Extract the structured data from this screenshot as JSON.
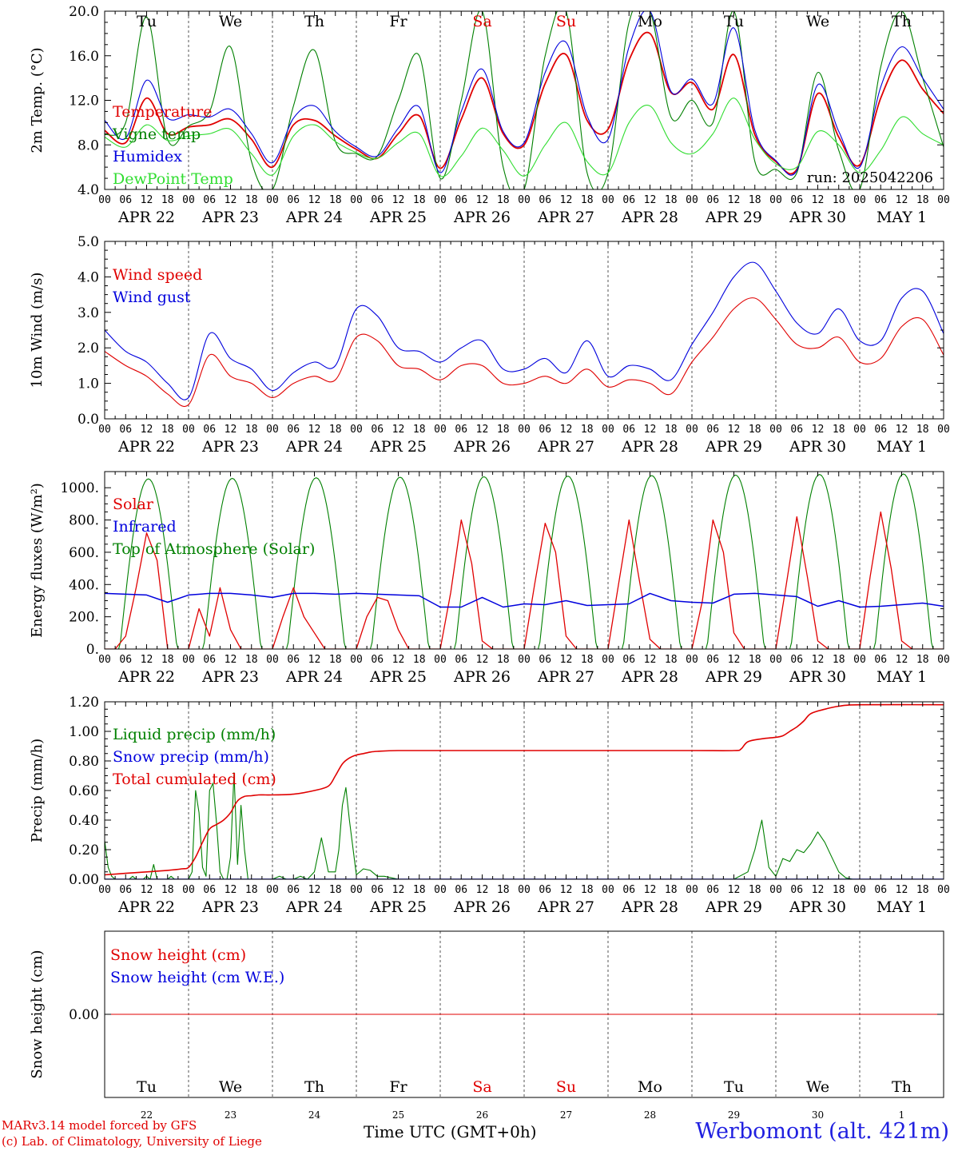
{
  "colors": {
    "red": "#e00000",
    "green": "#008000",
    "blue": "#0000dd",
    "lightgreen": "#30dd30",
    "weekend": "#e00000",
    "footer_blue": "#2020e0"
  },
  "time_axis": {
    "hour_labels": [
      "00",
      "06",
      "12",
      "18"
    ],
    "date_labels": [
      "APR 22",
      "APR 23",
      "APR 24",
      "APR 25",
      "APR 26",
      "APR 27",
      "APR 28",
      "APR 29",
      "APR 30",
      "MAY  1"
    ],
    "final_hour_label": "00",
    "weekdays": [
      {
        "label": "Tu",
        "weekend": false
      },
      {
        "label": "We",
        "weekend": false
      },
      {
        "label": "Th",
        "weekend": false
      },
      {
        "label": "Fr",
        "weekend": false
      },
      {
        "label": "Sa",
        "weekend": true
      },
      {
        "label": "Su",
        "weekend": true
      },
      {
        "label": "Mo",
        "weekend": false
      },
      {
        "label": "Tu",
        "weekend": false
      },
      {
        "label": "We",
        "weekend": false
      },
      {
        "label": "Th",
        "weekend": false
      }
    ],
    "day_numbers": [
      "22",
      "23",
      "24",
      "25",
      "26",
      "27",
      "28",
      "29",
      "30",
      "1"
    ]
  },
  "chart_data": [
    {
      "type": "line",
      "ylabel": "2m Temp. (°C)",
      "ylim": [
        4.0,
        20.0
      ],
      "yticks": [
        "4.0",
        "8.0",
        "12.0",
        "16.0",
        "20.0"
      ],
      "annotation": "run: 2025042206",
      "legend": [
        {
          "label": "Temperature",
          "color": "#e00000"
        },
        {
          "label": "Vigne temp",
          "color": "#008000"
        },
        {
          "label": "Humidex",
          "color": "#0000dd"
        },
        {
          "label": "DewPoint Temp",
          "color": "#30dd30"
        }
      ],
      "x_hours": [
        0,
        6,
        12,
        18,
        24,
        30,
        36,
        42,
        48,
        54,
        60,
        66,
        72,
        78,
        84,
        90,
        96,
        102,
        108,
        114,
        120,
        126,
        132,
        138,
        144,
        150,
        156,
        162,
        168,
        174,
        180,
        186,
        192,
        198,
        204,
        210,
        216,
        222,
        228,
        234,
        240
      ],
      "series": [
        {
          "name": "Temperature",
          "color": "#e00000",
          "values": [
            9.3,
            8.2,
            12.2,
            9.0,
            9.6,
            9.8,
            10.3,
            8.5,
            6.0,
            9.8,
            10.2,
            8.8,
            7.6,
            6.8,
            9.0,
            10.6,
            5.9,
            10.3,
            14.0,
            9.0,
            8.0,
            13.5,
            16.1,
            10.2,
            9.4,
            15.6,
            18.0,
            12.7,
            13.6,
            11.2,
            16.1,
            8.9,
            6.5,
            5.8,
            12.6,
            8.7,
            6.2,
            12.2,
            15.6,
            13.0,
            10.8
          ]
        },
        {
          "name": "Vigne temp",
          "color": "#008000",
          "values": [
            8.9,
            10.0,
            19.5,
            8.5,
            9.7,
            11.0,
            16.8,
            6.5,
            4.0,
            11.5,
            16.5,
            8.3,
            7.2,
            7.0,
            12.0,
            16.0,
            5.0,
            12.0,
            20.0,
            6.0,
            4.0,
            16.0,
            20.0,
            5.5,
            5.5,
            19.0,
            20.0,
            10.5,
            12.0,
            10.0,
            20.0,
            6.5,
            5.8,
            5.5,
            14.5,
            7.5,
            4.0,
            15.0,
            20.0,
            14.0,
            7.8
          ]
        },
        {
          "name": "Humidex",
          "color": "#0000dd",
          "values": [
            10.2,
            8.6,
            13.8,
            10.4,
            10.7,
            10.5,
            11.2,
            9.0,
            6.4,
            10.4,
            11.5,
            9.2,
            7.8,
            7.0,
            9.5,
            11.4,
            5.5,
            11.0,
            14.8,
            9.2,
            8.2,
            14.5,
            17.2,
            10.6,
            8.5,
            16.8,
            20.0,
            12.8,
            13.9,
            11.7,
            18.5,
            9.3,
            6.6,
            5.7,
            13.4,
            9.2,
            6.0,
            13.2,
            16.8,
            14.0,
            11.2
          ]
        },
        {
          "name": "DewPoint Temp",
          "color": "#30dd30",
          "values": [
            8.7,
            7.8,
            9.8,
            8.4,
            8.8,
            9.0,
            9.4,
            7.2,
            5.3,
            8.8,
            9.8,
            8.3,
            7.3,
            6.8,
            8.2,
            9.0,
            5.2,
            7.0,
            9.5,
            7.5,
            5.2,
            8.0,
            10.0,
            6.5,
            5.5,
            10.0,
            11.5,
            8.2,
            7.2,
            9.0,
            12.2,
            8.5,
            6.3,
            6.0,
            9.2,
            8.0,
            5.5,
            7.5,
            10.5,
            9.0,
            8.0
          ]
        }
      ]
    },
    {
      "type": "line",
      "ylabel": "10m Wind (m/s)",
      "ylim": [
        0.0,
        5.0
      ],
      "yticks": [
        "0.0",
        "1.0",
        "2.0",
        "3.0",
        "4.0",
        "5.0"
      ],
      "legend": [
        {
          "label": "Wind speed",
          "color": "#e00000"
        },
        {
          "label": "Wind gust",
          "color": "#0000dd"
        }
      ],
      "x_hours": [
        0,
        6,
        12,
        18,
        24,
        30,
        36,
        42,
        48,
        54,
        60,
        66,
        72,
        78,
        84,
        90,
        96,
        102,
        108,
        114,
        120,
        126,
        132,
        138,
        144,
        150,
        156,
        162,
        168,
        174,
        180,
        186,
        192,
        198,
        204,
        210,
        216,
        222,
        228,
        234,
        240
      ],
      "series": [
        {
          "name": "Wind speed",
          "color": "#e00000",
          "values": [
            1.9,
            1.5,
            1.2,
            0.7,
            0.4,
            1.8,
            1.2,
            1.0,
            0.6,
            1.0,
            1.2,
            1.1,
            2.3,
            2.2,
            1.5,
            1.4,
            1.1,
            1.5,
            1.5,
            1.0,
            1.0,
            1.2,
            1.0,
            1.4,
            0.9,
            1.1,
            1.0,
            0.7,
            1.6,
            2.3,
            3.1,
            3.4,
            2.8,
            2.1,
            2.0,
            2.3,
            1.6,
            1.7,
            2.6,
            2.8,
            1.8
          ]
        },
        {
          "name": "Wind gust",
          "color": "#0000dd",
          "values": [
            2.5,
            1.9,
            1.6,
            1.0,
            0.6,
            2.4,
            1.7,
            1.4,
            0.8,
            1.3,
            1.6,
            1.5,
            3.1,
            2.9,
            2.0,
            1.9,
            1.6,
            2.0,
            2.2,
            1.4,
            1.4,
            1.7,
            1.3,
            2.2,
            1.2,
            1.5,
            1.4,
            1.1,
            2.1,
            3.0,
            4.0,
            4.4,
            3.6,
            2.7,
            2.4,
            3.1,
            2.2,
            2.2,
            3.4,
            3.6,
            2.4
          ]
        }
      ]
    },
    {
      "type": "line",
      "ylabel": "Energy fluxes (W/m²)",
      "ylim": [
        0,
        1100
      ],
      "yticks": [
        "0.",
        "200.",
        "400.",
        "600.",
        "800.",
        "1000."
      ],
      "legend": [
        {
          "label": "Solar",
          "color": "#e00000"
        },
        {
          "label": "Infrared",
          "color": "#0000dd"
        },
        {
          "label": "Top of Atmosphere (Solar)",
          "color": "#008000"
        }
      ],
      "toa_peak": [
        1055,
        1058,
        1062,
        1065,
        1068,
        1072,
        1075,
        1078,
        1082,
        1085
      ],
      "solar_peak": [
        740,
        370,
        370,
        320,
        810,
        790,
        820,
        810,
        830,
        850
      ],
      "solar_hours": [
        0,
        3,
        6,
        9,
        12,
        15,
        18,
        21,
        24,
        27,
        30,
        33,
        36,
        39,
        42,
        45,
        48,
        51,
        54,
        57,
        60,
        63,
        66,
        69,
        72,
        75,
        78,
        81,
        84,
        87,
        90,
        93,
        96,
        99,
        102,
        105,
        108,
        111,
        114,
        117,
        120,
        123,
        126,
        129,
        132,
        135,
        138,
        141,
        144,
        147,
        150,
        153,
        156,
        159,
        162,
        165,
        168,
        171,
        174,
        177,
        180,
        183,
        186,
        189,
        192,
        195,
        198,
        201,
        204,
        207,
        210,
        213,
        216,
        219,
        222,
        225,
        228,
        231,
        234,
        237,
        240
      ],
      "solar_values": [
        0,
        0,
        80,
        380,
        720,
        550,
        0,
        0,
        0,
        250,
        80,
        380,
        120,
        0,
        0,
        0,
        0,
        200,
        380,
        200,
        100,
        0,
        0,
        0,
        0,
        200,
        320,
        300,
        120,
        0,
        0,
        0,
        0,
        350,
        800,
        530,
        50,
        0,
        0,
        0,
        0,
        400,
        780,
        600,
        80,
        0,
        0,
        0,
        0,
        400,
        800,
        420,
        60,
        0,
        0,
        0,
        0,
        300,
        800,
        600,
        100,
        0,
        0,
        0,
        0,
        400,
        820,
        450,
        50,
        0,
        0,
        0,
        0,
        450,
        850,
        500,
        50,
        0,
        0,
        0,
        0
      ],
      "infrared_hours": [
        0,
        6,
        12,
        18,
        24,
        30,
        36,
        42,
        48,
        54,
        60,
        66,
        72,
        78,
        84,
        90,
        96,
        102,
        108,
        114,
        120,
        126,
        132,
        138,
        144,
        150,
        156,
        162,
        168,
        174,
        180,
        186,
        192,
        198,
        204,
        210,
        216,
        222,
        228,
        234,
        240
      ],
      "infrared_values": [
        345,
        340,
        335,
        290,
        335,
        345,
        345,
        335,
        320,
        345,
        345,
        340,
        345,
        340,
        335,
        330,
        260,
        260,
        320,
        260,
        280,
        275,
        300,
        270,
        275,
        280,
        345,
        300,
        290,
        285,
        340,
        345,
        335,
        325,
        265,
        300,
        260,
        265,
        275,
        285,
        265
      ]
    },
    {
      "type": "line",
      "ylabel": "Precip (mm/h)",
      "ylim": [
        0.0,
        1.2
      ],
      "yticks": [
        "0.00",
        "0.20",
        "0.40",
        "0.60",
        "0.80",
        "1.00",
        "1.20"
      ],
      "legend": [
        {
          "label": "Liquid precip (mm/h)",
          "color": "#008000"
        },
        {
          "label": "Snow precip (mm/h)",
          "color": "#0000dd"
        },
        {
          "label": "Total cumulated (cm)",
          "color": "#e00000"
        }
      ],
      "liquid_hours": [
        0,
        1,
        2,
        3,
        4,
        5,
        6,
        7,
        8,
        9,
        10,
        11,
        12,
        13,
        14,
        15,
        16,
        17,
        18,
        19,
        20,
        21,
        22,
        23,
        24,
        25,
        26,
        27,
        28,
        29,
        30,
        31,
        32,
        33,
        34,
        35,
        36,
        37,
        38,
        39,
        40,
        41,
        42,
        43,
        44,
        45,
        46,
        47,
        48,
        50,
        52,
        54,
        56,
        58,
        60,
        62,
        64,
        66,
        67,
        68,
        69,
        70,
        72,
        74,
        76,
        78,
        80,
        82,
        84,
        90,
        96,
        108,
        120,
        180,
        184,
        186,
        188,
        190,
        192,
        194,
        196,
        198,
        200,
        202,
        204,
        206,
        208,
        210,
        212,
        214,
        216,
        240
      ],
      "liquid_values": [
        0.26,
        0.08,
        0.02,
        0.0,
        0.0,
        0.0,
        0.0,
        0.0,
        0.02,
        0.0,
        0.0,
        0.0,
        0.02,
        0.0,
        0.1,
        0.0,
        0.0,
        0.0,
        0.0,
        0.02,
        0.0,
        0.0,
        0.0,
        0.0,
        0.0,
        0.05,
        0.6,
        0.45,
        0.08,
        0.02,
        0.6,
        0.65,
        0.38,
        0.05,
        0.0,
        0.0,
        0.15,
        0.72,
        0.1,
        0.5,
        0.2,
        0.0,
        0.0,
        0.0,
        0.0,
        0.0,
        0.0,
        0.0,
        0.0,
        0.02,
        0.0,
        0.0,
        0.02,
        0.0,
        0.05,
        0.28,
        0.05,
        0.05,
        0.2,
        0.5,
        0.62,
        0.4,
        0.03,
        0.07,
        0.06,
        0.02,
        0.02,
        0.01,
        0.0,
        0.0,
        0.0,
        0.0,
        0.0,
        0.0,
        0.05,
        0.2,
        0.4,
        0.08,
        0.02,
        0.14,
        0.12,
        0.2,
        0.18,
        0.24,
        0.32,
        0.25,
        0.15,
        0.05,
        0.01,
        0.0,
        0.0,
        0.0
      ],
      "snow_values_constant": 0.0,
      "cum_hours": [
        0,
        6,
        12,
        18,
        22,
        24,
        26,
        28,
        30,
        32,
        34,
        36,
        38,
        40,
        42,
        44,
        46,
        48,
        54,
        60,
        64,
        66,
        68,
        70,
        72,
        74,
        76,
        78,
        84,
        96,
        120,
        144,
        168,
        180,
        182,
        184,
        188,
        192,
        194,
        196,
        198,
        200,
        202,
        206,
        210,
        216,
        240
      ],
      "cum_values": [
        0.03,
        0.04,
        0.05,
        0.06,
        0.07,
        0.08,
        0.15,
        0.25,
        0.34,
        0.37,
        0.4,
        0.45,
        0.53,
        0.56,
        0.565,
        0.57,
        0.57,
        0.57,
        0.575,
        0.6,
        0.63,
        0.7,
        0.78,
        0.82,
        0.84,
        0.85,
        0.86,
        0.865,
        0.87,
        0.87,
        0.87,
        0.87,
        0.87,
        0.87,
        0.88,
        0.93,
        0.95,
        0.96,
        0.97,
        1.0,
        1.03,
        1.07,
        1.12,
        1.15,
        1.17,
        1.18,
        1.18
      ]
    },
    {
      "type": "line",
      "ylabel": "Snow height (cm)",
      "ylim": [
        -1.0,
        1.0
      ],
      "yticks": [
        "0.00"
      ],
      "legend": [
        {
          "label": "Snow height (cm)",
          "color": "#e00000"
        },
        {
          "label": "Snow height (cm W.E.)",
          "color": "#0000dd"
        }
      ],
      "series": [
        {
          "name": "Snow height (cm)",
          "color": "#e00000",
          "values": [
            0.0,
            0.0
          ]
        }
      ],
      "x_hours": [
        0,
        240
      ]
    }
  ],
  "footer": {
    "credit_line1": "MARv3.14 model forced by GFS",
    "credit_line2": "(c) Lab. of Climatology, University of Liege",
    "xtitle": "Time UTC (GMT+0h)",
    "station": "Werbomont (alt. 421m)"
  }
}
